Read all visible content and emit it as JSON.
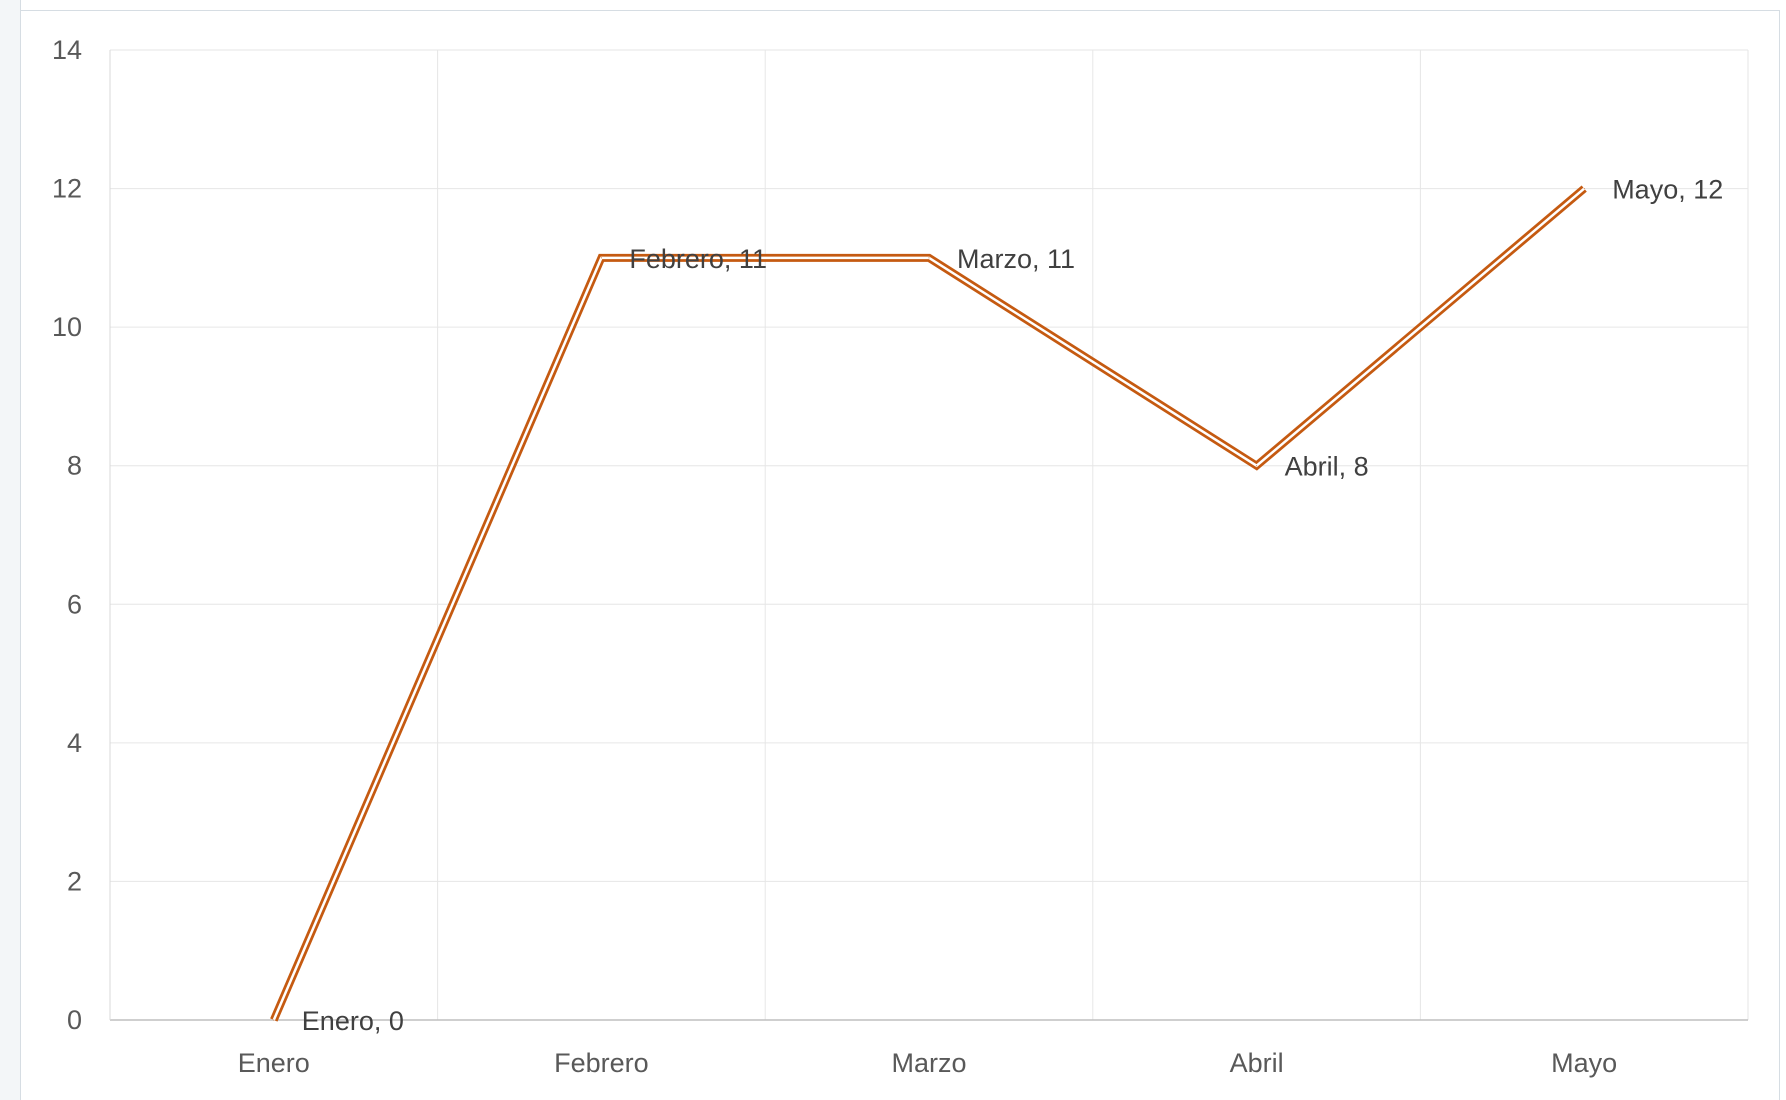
{
  "chart_data": {
    "type": "line",
    "categories": [
      "Enero",
      "Febrero",
      "Marzo",
      "Abril",
      "Mayo"
    ],
    "series": [
      {
        "values": [
          0,
          11,
          11,
          8,
          12
        ],
        "color": "#c55a11"
      }
    ],
    "data_labels": [
      "Enero, 0",
      "Febrero, 11",
      "Marzo, 11",
      "Abril, 8",
      "Mayo, 12"
    ],
    "ylim": [
      0,
      14
    ],
    "y_ticks": [
      "0",
      "2",
      "4",
      "6",
      "8",
      "10",
      "12",
      "14"
    ],
    "grid": true,
    "line_style": "double",
    "gridline_color": "#e6e6e6"
  }
}
